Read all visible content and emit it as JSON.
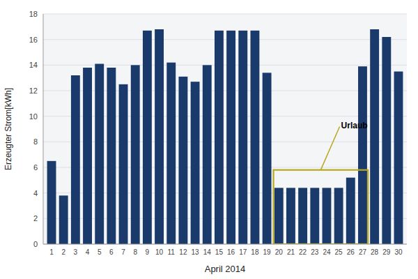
{
  "chart_data": {
    "type": "bar",
    "x": [
      1,
      2,
      3,
      4,
      5,
      6,
      7,
      8,
      9,
      10,
      11,
      12,
      13,
      14,
      15,
      16,
      17,
      18,
      19,
      20,
      21,
      22,
      23,
      24,
      25,
      26,
      27,
      28,
      29,
      30
    ],
    "values": [
      6.5,
      3.8,
      13.2,
      13.8,
      14.1,
      13.8,
      12.5,
      14.0,
      16.7,
      16.8,
      14.2,
      13.1,
      12.7,
      14.0,
      16.7,
      16.7,
      16.7,
      16.7,
      13.4,
      4.4,
      4.4,
      4.4,
      4.4,
      4.4,
      4.4,
      5.2,
      13.9,
      16.8,
      16.2,
      13.5
    ],
    "color": "#1a3a6b",
    "x_label": "April 2014",
    "y_label": "Erzeugter Strom[kWh]",
    "xlim": [
      0.3,
      30.7
    ],
    "xticks": [
      1,
      2,
      3,
      4,
      5,
      6,
      7,
      8,
      9,
      10,
      11,
      12,
      13,
      14,
      15,
      16,
      17,
      18,
      19,
      20,
      21,
      22,
      23,
      24,
      25,
      26,
      27,
      28,
      29,
      30
    ],
    "ylim": [
      0,
      18
    ],
    "yticks": [
      0,
      2,
      4,
      6,
      8,
      10,
      12,
      14,
      16,
      18
    ],
    "grid": true,
    "annotations": [
      {
        "text": "Urlaub",
        "x": 25.2,
        "y": 9.3,
        "arrow_x": 23.5,
        "arrow_y": 5.8,
        "color": "#b8a820",
        "box": {
          "x0": 19.55,
          "x1": 27.45,
          "height": 5.8
        }
      }
    ]
  }
}
